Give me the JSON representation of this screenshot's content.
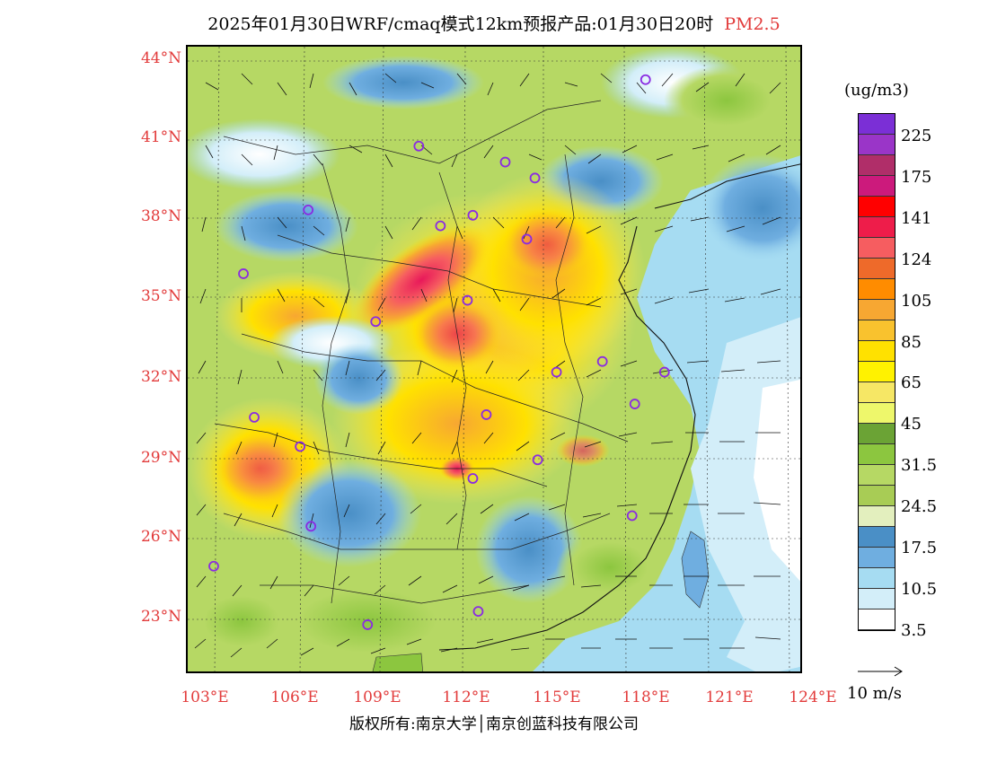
{
  "title": {
    "main": "2025年01月30日WRF/cmaq模式12km预报产品:01月30日20时",
    "pollutant": "PM2.5"
  },
  "axes": {
    "lat_labels": [
      "44°N",
      "41°N",
      "38°N",
      "35°N",
      "32°N",
      "29°N",
      "26°N",
      "23°N"
    ],
    "lon_labels": [
      "103°E",
      "106°E",
      "109°E",
      "112°E",
      "115°E",
      "118°E",
      "121°E",
      "124°E"
    ]
  },
  "colorbar": {
    "unit": "(ug/m3)",
    "labels": [
      "225",
      "175",
      "141",
      "124",
      "105",
      "85",
      "65",
      "45",
      "31.5",
      "24.5",
      "17.5",
      "10.5",
      "3.5"
    ],
    "colors": [
      "#7b2fd6",
      "#9a35c8",
      "#b02e69",
      "#cc1a7c",
      "#ff0000",
      "#ee1d4a",
      "#f65d60",
      "#ee6a2a",
      "#ff8c00",
      "#f7a732",
      "#f9c22e",
      "#ffe100",
      "#fff200",
      "#f6e765",
      "#eef76b",
      "#6ba335",
      "#8cc63f",
      "#b6d864",
      "#a8cc55",
      "#e3efbe",
      "#4a8fc6",
      "#6faee0",
      "#a6dcf2",
      "#d3eef9",
      "#ffffff"
    ]
  },
  "wind_legend": {
    "label": "10 m/s"
  },
  "copyright": "版权所有:南京大学│南京创蓝科技有限公司",
  "cities": [
    {
      "lon": 118.8,
      "lat": 43.3
    },
    {
      "lon": 110.4,
      "lat": 40.8
    },
    {
      "lon": 113.6,
      "lat": 40.2
    },
    {
      "lon": 114.7,
      "lat": 39.6
    },
    {
      "lon": 106.3,
      "lat": 38.4
    },
    {
      "lon": 111.2,
      "lat": 37.8
    },
    {
      "lon": 112.4,
      "lat": 38.2
    },
    {
      "lon": 114.4,
      "lat": 37.3
    },
    {
      "lon": 103.9,
      "lat": 36.0
    },
    {
      "lon": 112.2,
      "lat": 35.0
    },
    {
      "lon": 108.8,
      "lat": 34.2
    },
    {
      "lon": 117.2,
      "lat": 32.7
    },
    {
      "lon": 115.5,
      "lat": 32.3
    },
    {
      "lon": 119.5,
      "lat": 32.3
    },
    {
      "lon": 118.4,
      "lat": 31.1
    },
    {
      "lon": 104.3,
      "lat": 30.6
    },
    {
      "lon": 112.9,
      "lat": 30.7
    },
    {
      "lon": 106.0,
      "lat": 29.5
    },
    {
      "lon": 114.8,
      "lat": 29.0
    },
    {
      "lon": 112.4,
      "lat": 28.3
    },
    {
      "lon": 106.4,
      "lat": 26.5
    },
    {
      "lon": 118.3,
      "lat": 26.9
    },
    {
      "lon": 102.8,
      "lat": 25.0
    },
    {
      "lon": 108.5,
      "lat": 22.8
    },
    {
      "lon": 112.6,
      "lat": 23.3
    }
  ]
}
